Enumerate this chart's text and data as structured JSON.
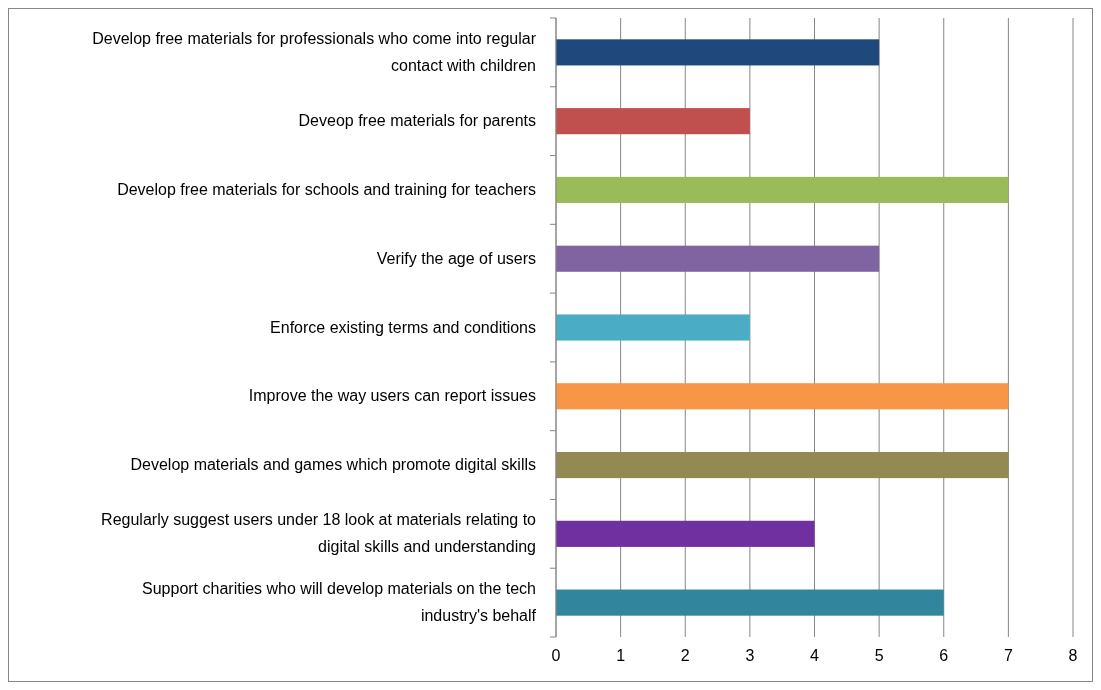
{
  "chart_data": {
    "type": "bar",
    "orientation": "horizontal",
    "categories": [
      "Develop free materials for professionals who come into regular contact with children",
      "Deveop free materials for parents",
      "Develop free materials for schools and training for teachers",
      "Verify the age of users",
      "Enforce existing terms and conditions",
      "Improve the way users can report issues",
      "Develop materials and games which promote digital skills",
      "Regularly suggest users under 18 look at materials relating to digital skills and understanding",
      "Support charities who will develop materials on the tech industry's behalf"
    ],
    "values": [
      5,
      3,
      7,
      5,
      3,
      7,
      7,
      4,
      6
    ],
    "colors": [
      "#1f497d",
      "#c0504d",
      "#9bbb59",
      "#8064a2",
      "#4bacc6",
      "#f79646",
      "#938953",
      "#7030a0",
      "#31859c"
    ],
    "xlim": [
      0,
      8
    ],
    "xticks": [
      0,
      1,
      2,
      3,
      4,
      5,
      6,
      7,
      8
    ],
    "grid": "x"
  }
}
